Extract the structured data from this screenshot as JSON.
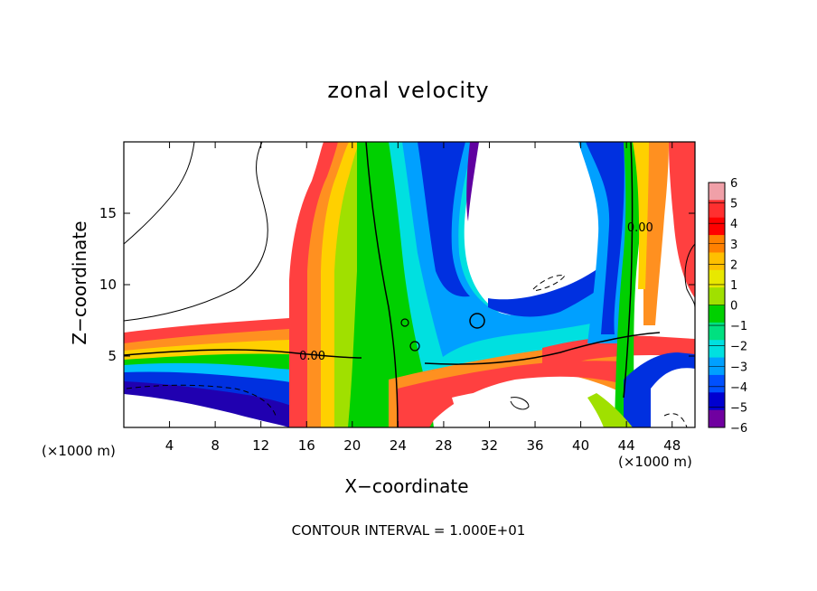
{
  "chart_data": {
    "type": "heatmap",
    "title": "zonal velocity",
    "xlabel": "X−coordinate",
    "ylabel": "Z−coordinate",
    "x_unit_label": "(×1000 m)",
    "z_unit_label": "(×1000 m)",
    "footer": "CONTOUR INTERVAL = 1.000E+01",
    "xlim": [
      0,
      50
    ],
    "ylim": [
      0,
      20
    ],
    "x_ticks": [
      "4",
      "8",
      "12",
      "16",
      "20",
      "24",
      "28",
      "32",
      "36",
      "40",
      "44",
      "48"
    ],
    "y_ticks": [
      "5",
      "10",
      "15"
    ],
    "colorbar": {
      "levels": [
        "6",
        "5",
        "4",
        "3",
        "2",
        "1",
        "0",
        "−1",
        "−2",
        "−3",
        "−4",
        "−5",
        "−6"
      ],
      "min": -6,
      "max": 6,
      "colors": [
        "#f0a0a8",
        "#ff3030",
        "#ff0000",
        "#ff8000",
        "#ffc000",
        "#e8e800",
        "#a0e000",
        "#00d000",
        "#00e080",
        "#00e0e0",
        "#00a0ff",
        "#0050ff",
        "#0000d0",
        "#7000a0"
      ]
    },
    "contour_labels": [
      {
        "text": "0.00",
        "x": 16.5,
        "z": 5.0
      },
      {
        "text": "0.00",
        "x": 45.2,
        "z": 14.0
      }
    ]
  }
}
